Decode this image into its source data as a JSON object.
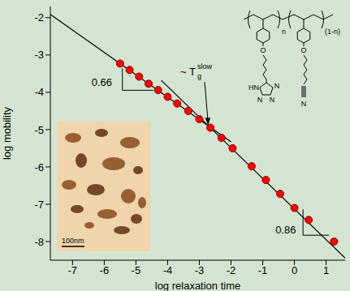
{
  "chart_data": {
    "type": "scatter",
    "x_label": "log relaxation time",
    "y_label": "log mobility",
    "x": [
      -5.5,
      -5.2,
      -4.9,
      -4.6,
      -4.3,
      -4.0,
      -3.7,
      -3.35,
      -3.0,
      -2.65,
      -2.3,
      -1.95,
      -1.35,
      -0.9,
      -0.45,
      0.0,
      0.45,
      1.25
    ],
    "values": [
      -3.23,
      -3.4,
      -3.58,
      -3.77,
      -3.94,
      -4.12,
      -4.3,
      -4.5,
      -4.72,
      -4.95,
      -5.22,
      -5.5,
      -5.98,
      -6.35,
      -6.72,
      -7.1,
      -7.42,
      -8.0
    ],
    "color": "#ff0000",
    "marker": "circle",
    "xlim": [
      -7.7,
      1.6
    ],
    "ylim": [
      -8.5,
      -1.7
    ],
    "xticks": [
      -7,
      -6,
      -5,
      -4,
      -3,
      -2,
      -1,
      0,
      1
    ],
    "yticks": [
      -8,
      -7,
      -6,
      -5,
      -4,
      -3,
      -2
    ],
    "fit_lines": [
      {
        "x": [
          -7.7,
          -2.0
        ],
        "values": [
          -1.91,
          -5.33
        ],
        "color": "#000000"
      },
      {
        "x": [
          -4.2,
          1.6
        ],
        "values": [
          -3.68,
          -8.44
        ],
        "color": "#000000"
      }
    ],
    "annotations": [
      {
        "text": "0.66",
        "x": -6.4,
        "y": -3.75
      },
      {
        "text": "0.86",
        "x": -0.6,
        "y": -7.7
      },
      {
        "text": "~ T",
        "subscript": "g",
        "superscript": "slow",
        "x": -3.6,
        "y": -3.55
      }
    ],
    "inset": {
      "scale_bar": "100nm"
    },
    "structure_labels": [
      "n",
      "(1-n)",
      "O",
      "O",
      "HN",
      "N",
      "N",
      "N",
      "N"
    ]
  }
}
